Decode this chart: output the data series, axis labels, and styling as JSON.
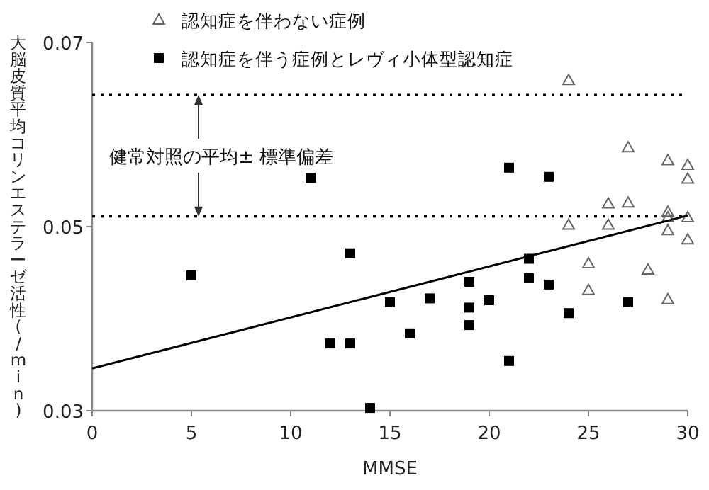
{
  "chart_data": {
    "type": "scatter",
    "xlabel": "MMSE",
    "ylabel": "大脳皮質平均コリンエステラーゼ活性(/min)",
    "xlim": [
      0,
      30
    ],
    "xticks": [
      0,
      5,
      10,
      15,
      20,
      25,
      30
    ],
    "ylim": [
      0.03,
      0.07
    ],
    "yticks": [
      0.03,
      0.05,
      0.07
    ],
    "grid": false,
    "legend": "top",
    "series": [
      {
        "name": "認知症を伴わない症例",
        "color": "#666666",
        "marker": "triangle",
        "x": [
          24,
          24,
          25,
          25,
          26,
          26,
          27,
          27,
          28,
          29,
          29,
          29,
          29,
          29,
          30,
          30,
          30,
          30
        ],
        "values": [
          0.0659,
          0.0502,
          0.046,
          0.0431,
          0.0525,
          0.0502,
          0.0586,
          0.0526,
          0.0453,
          0.0572,
          0.0516,
          0.051,
          0.0496,
          0.0421,
          0.0567,
          0.0552,
          0.051,
          0.0486
        ]
      },
      {
        "name": "認知症を伴う症例とレヴィ小体型認知症",
        "color": "#000000",
        "marker": "square",
        "x": [
          5,
          11,
          13,
          12,
          13,
          15,
          14,
          16,
          17,
          19,
          19,
          19,
          20,
          21,
          21,
          22,
          22,
          23,
          23,
          24,
          27
        ],
        "values": [
          0.0447,
          0.0553,
          0.0471,
          0.0373,
          0.0373,
          0.0418,
          0.0303,
          0.0384,
          0.0422,
          0.044,
          0.0412,
          0.0393,
          0.042,
          0.0564,
          0.0354,
          0.0465,
          0.0444,
          0.0554,
          0.0437,
          0.0406,
          0.0418
        ]
      },
      {
        "type": "line",
        "color": "#000000",
        "marker": "none",
        "line_style": "solid",
        "x": [
          0,
          30
        ],
        "values": [
          0.0346,
          0.0512
        ]
      }
    ],
    "ref_lines": [
      {
        "axis": "y",
        "value": 0.0643,
        "line_style": "dotted",
        "color": "#000000"
      },
      {
        "axis": "y",
        "value": 0.0511,
        "line_style": "dotted",
        "color": "#000000"
      }
    ],
    "annotations": [
      "健常対照の平均± 標準偏差"
    ]
  }
}
